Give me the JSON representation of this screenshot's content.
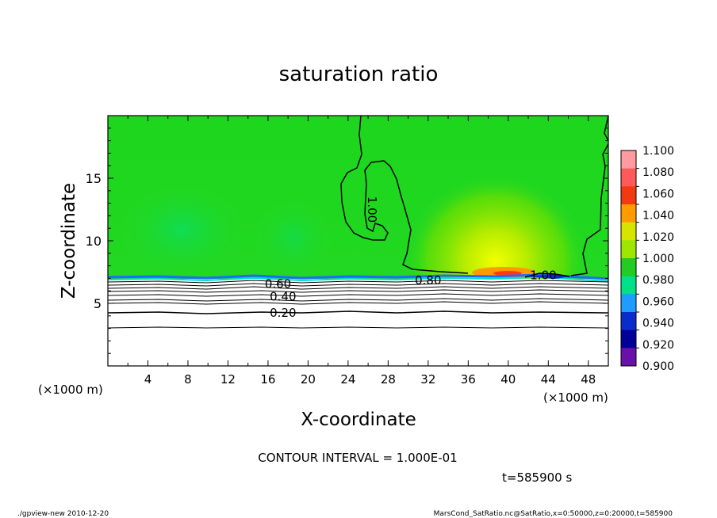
{
  "chart_data": {
    "type": "heatmap",
    "title": "saturation ratio",
    "xlabel": "X-coordinate",
    "ylabel": "Z-coordinate",
    "x_unit": "(×1000 m)",
    "xlim": [
      0,
      50
    ],
    "ylim": [
      0,
      20
    ],
    "x_ticks": [
      4,
      8,
      12,
      16,
      20,
      24,
      28,
      32,
      36,
      40,
      44,
      48
    ],
    "y_ticks": [
      5,
      10,
      15
    ],
    "colorbar": {
      "labels": [
        "1.100",
        "1.080",
        "1.060",
        "1.040",
        "1.020",
        "1.000",
        "0.980",
        "0.960",
        "0.940",
        "0.920",
        "0.900"
      ],
      "colors": [
        "#ff9aa0",
        "#ff5a5a",
        "#f23a12",
        "#ff9a00",
        "#d6e400",
        "#9ee600",
        "#22cc22",
        "#00e08a",
        "#1e9cff",
        "#0b2ccc",
        "#000099",
        "#6a10aa"
      ]
    },
    "contour_labels": [
      {
        "text": "0.20",
        "x": 17.5,
        "z": 4.3
      },
      {
        "text": "0.40",
        "x": 17.5,
        "z": 5.6
      },
      {
        "text": "0.60",
        "x": 17.0,
        "z": 6.6
      },
      {
        "text": "0.80",
        "x": 32.0,
        "z": 6.9
      },
      {
        "text": "1.00",
        "x": 26.0,
        "z": 12.5
      },
      {
        "text": "1.00",
        "x": 43.5,
        "z": 7.3
      }
    ],
    "contour_interval": "CONTOUR INTERVAL = 1.000E-01",
    "time": "t=585900  s"
  },
  "footer": {
    "left": "./gpview-new   2010-12-20",
    "right": "MarsCond_SatRatio.nc@SatRatio,x=0:50000,z=0:20000,t=585900"
  }
}
